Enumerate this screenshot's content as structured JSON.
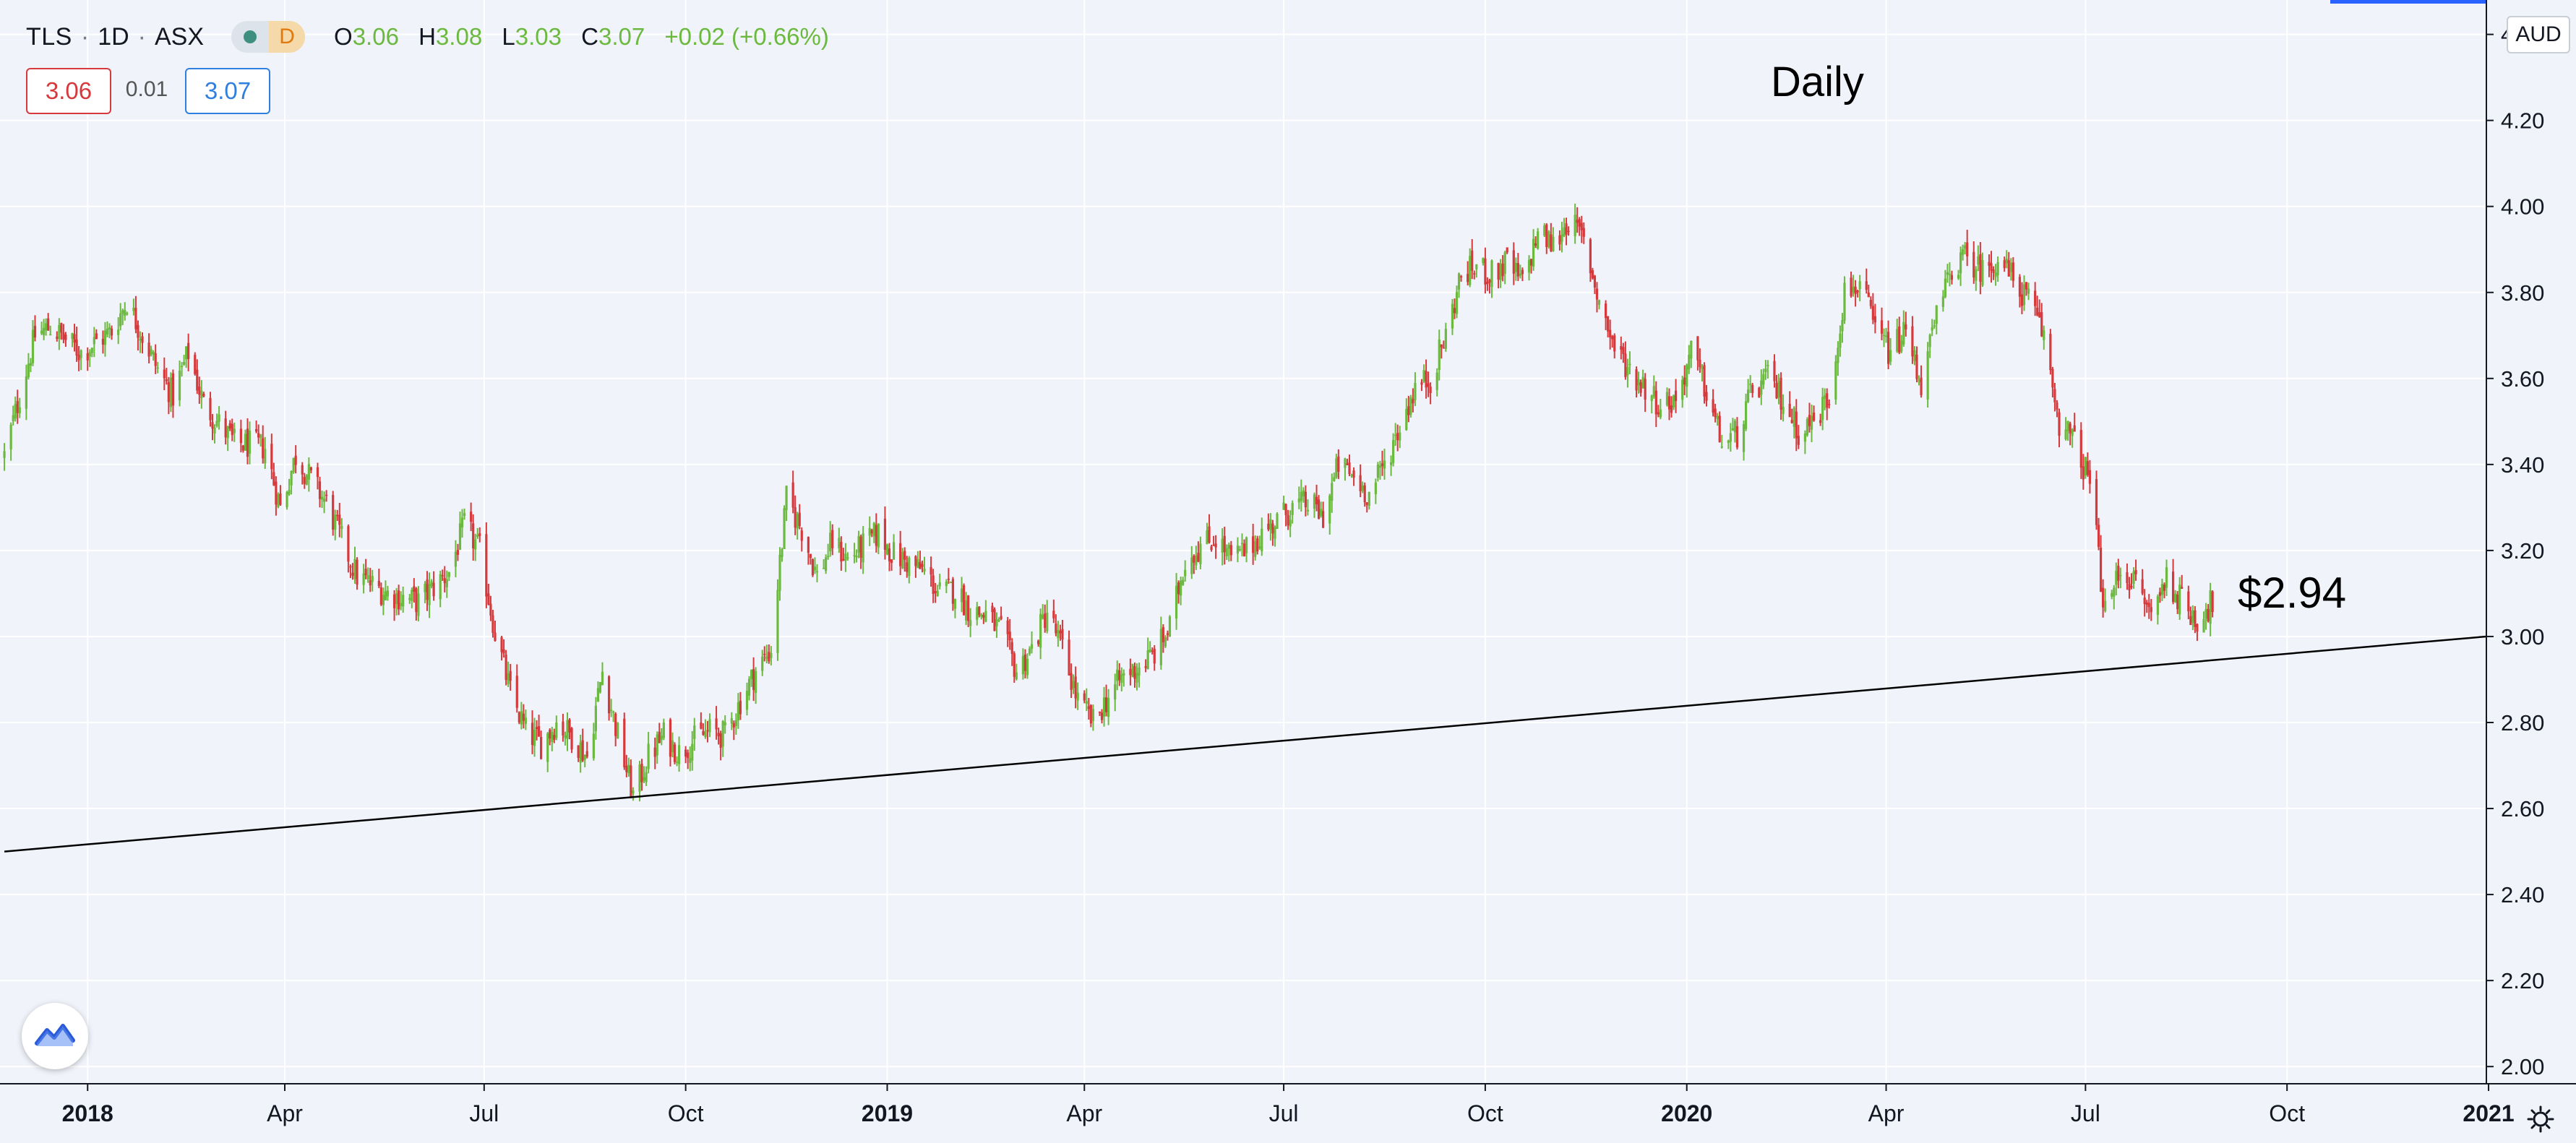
{
  "header": {
    "symbol": "TLS",
    "interval": "1D",
    "exchange": "ASX",
    "separator": "·",
    "delay_badge": "D",
    "ohlc": {
      "o_label": "O",
      "o": "3.06",
      "h_label": "H",
      "h": "3.08",
      "l_label": "L",
      "l": "3.03",
      "c_label": "C",
      "c": "3.07",
      "change": "+0.02 (+0.66%)"
    },
    "bid": "3.06",
    "spread": "0.01",
    "ask": "3.07"
  },
  "currency": "AUD",
  "annotations": {
    "title_text": "Daily",
    "price_note": "$2.94"
  },
  "icons": {
    "logo": "tradingview-logo-icon",
    "settings": "gear-icon",
    "market_status": "market-status-dot-icon"
  },
  "colors": {
    "up": "#6bb93f",
    "down": "#d6393b",
    "background": "#f0f3fa",
    "grid": "#ffffff",
    "trendline": "#000000"
  },
  "chart_data": {
    "type": "candlestick",
    "title": "Daily",
    "ylim": [
      1.96,
      4.48
    ],
    "yticks": [
      2.0,
      2.2,
      2.4,
      2.6,
      2.8,
      3.0,
      3.2,
      3.4,
      3.6,
      3.8,
      4.0,
      4.2,
      4.4
    ],
    "ytick_labels": [
      "2.00",
      "2.20",
      "2.40",
      "2.60",
      "2.80",
      "3.00",
      "3.20",
      "3.40",
      "3.60",
      "3.80",
      "4.00",
      "4.20",
      "4.40"
    ],
    "xlim": [
      "2017-11-22",
      "2020-12-31"
    ],
    "xticks": [
      {
        "date": "2018-01-01",
        "label": "2018",
        "bold": true
      },
      {
        "date": "2018-04-01",
        "label": "Apr",
        "bold": false
      },
      {
        "date": "2018-07-01",
        "label": "Jul",
        "bold": false
      },
      {
        "date": "2018-10-01",
        "label": "Oct",
        "bold": false
      },
      {
        "date": "2019-01-01",
        "label": "2019",
        "bold": true
      },
      {
        "date": "2019-04-01",
        "label": "Apr",
        "bold": false
      },
      {
        "date": "2019-07-01",
        "label": "Jul",
        "bold": false
      },
      {
        "date": "2019-10-01",
        "label": "Oct",
        "bold": false
      },
      {
        "date": "2020-01-01",
        "label": "2020",
        "bold": true
      },
      {
        "date": "2020-04-01",
        "label": "Apr",
        "bold": false
      },
      {
        "date": "2020-07-01",
        "label": "Jul",
        "bold": false
      },
      {
        "date": "2020-10-01",
        "label": "Oct",
        "bold": false
      },
      {
        "date": "2021-01-01",
        "label": "2021",
        "bold": true
      }
    ],
    "close_path": [
      [
        "2017-11-24",
        3.42
      ],
      [
        "2017-12-01",
        3.56
      ],
      [
        "2017-12-08",
        3.7
      ],
      [
        "2017-12-15",
        3.72
      ],
      [
        "2017-12-29",
        3.66
      ],
      [
        "2018-01-12",
        3.71
      ],
      [
        "2018-01-19",
        3.78
      ],
      [
        "2018-02-02",
        3.62
      ],
      [
        "2018-02-09",
        3.56
      ],
      [
        "2018-02-16",
        3.66
      ],
      [
        "2018-02-23",
        3.54
      ],
      [
        "2018-03-09",
        3.45
      ],
      [
        "2018-03-23",
        3.44
      ],
      [
        "2018-03-30",
        3.3
      ],
      [
        "2018-04-06",
        3.42
      ],
      [
        "2018-04-20",
        3.31
      ],
      [
        "2018-05-04",
        3.14
      ],
      [
        "2018-05-18",
        3.1
      ],
      [
        "2018-06-01",
        3.08
      ],
      [
        "2018-06-15",
        3.15
      ],
      [
        "2018-06-22",
        3.26
      ],
      [
        "2018-06-29",
        3.2
      ],
      [
        "2018-07-06",
        3.01
      ],
      [
        "2018-07-13",
        2.87
      ],
      [
        "2018-07-20",
        2.78
      ],
      [
        "2018-07-27",
        2.75
      ],
      [
        "2018-08-03",
        2.8
      ],
      [
        "2018-08-10",
        2.77
      ],
      [
        "2018-08-17",
        2.72
      ],
      [
        "2018-08-24",
        2.92
      ],
      [
        "2018-08-31",
        2.77
      ],
      [
        "2018-09-07",
        2.63
      ],
      [
        "2018-09-14",
        2.72
      ],
      [
        "2018-09-21",
        2.77
      ],
      [
        "2018-09-28",
        2.73
      ],
      [
        "2018-10-05",
        2.76
      ],
      [
        "2018-10-12",
        2.78
      ],
      [
        "2018-10-19",
        2.77
      ],
      [
        "2018-10-26",
        2.85
      ],
      [
        "2018-11-02",
        2.92
      ],
      [
        "2018-11-09",
        2.97
      ],
      [
        "2018-11-16",
        3.32
      ],
      [
        "2018-11-23",
        3.25
      ],
      [
        "2018-11-30",
        3.14
      ],
      [
        "2018-12-07",
        3.22
      ],
      [
        "2018-12-14",
        3.18
      ],
      [
        "2018-12-21",
        3.21
      ],
      [
        "2018-12-28",
        3.24
      ],
      [
        "2019-01-04",
        3.19
      ],
      [
        "2019-01-11",
        3.17
      ],
      [
        "2019-01-18",
        3.15
      ],
      [
        "2019-01-25",
        3.1
      ],
      [
        "2019-02-01",
        3.11
      ],
      [
        "2019-02-08",
        3.06
      ],
      [
        "2019-02-15",
        3.05
      ],
      [
        "2019-02-22",
        3.01
      ],
      [
        "2019-03-01",
        2.92
      ],
      [
        "2019-03-08",
        2.97
      ],
      [
        "2019-03-15",
        3.06
      ],
      [
        "2019-03-22",
        2.97
      ],
      [
        "2019-03-29",
        2.85
      ],
      [
        "2019-04-05",
        2.8
      ],
      [
        "2019-04-12",
        2.86
      ],
      [
        "2019-04-19",
        2.91
      ],
      [
        "2019-04-26",
        2.93
      ],
      [
        "2019-05-03",
        2.96
      ],
      [
        "2019-05-10",
        3.02
      ],
      [
        "2019-05-17",
        3.18
      ],
      [
        "2019-05-24",
        3.21
      ],
      [
        "2019-05-31",
        3.23
      ],
      [
        "2019-06-07",
        3.18
      ],
      [
        "2019-06-14",
        3.2
      ],
      [
        "2019-06-21",
        3.24
      ],
      [
        "2019-06-28",
        3.27
      ],
      [
        "2019-07-05",
        3.3
      ],
      [
        "2019-07-12",
        3.31
      ],
      [
        "2019-07-19",
        3.28
      ],
      [
        "2019-07-26",
        3.4
      ],
      [
        "2019-08-02",
        3.37
      ],
      [
        "2019-08-09",
        3.33
      ],
      [
        "2019-08-16",
        3.4
      ],
      [
        "2019-08-23",
        3.49
      ],
      [
        "2019-08-30",
        3.58
      ],
      [
        "2019-09-06",
        3.6
      ],
      [
        "2019-09-13",
        3.7
      ],
      [
        "2019-09-20",
        3.84
      ],
      [
        "2019-09-27",
        3.86
      ],
      [
        "2019-10-04",
        3.84
      ],
      [
        "2019-10-11",
        3.87
      ],
      [
        "2019-10-18",
        3.82
      ],
      [
        "2019-10-25",
        3.94
      ],
      [
        "2019-11-01",
        3.91
      ],
      [
        "2019-11-08",
        3.97
      ],
      [
        "2019-11-15",
        3.92
      ],
      [
        "2019-11-22",
        3.78
      ],
      [
        "2019-11-29",
        3.67
      ],
      [
        "2019-12-06",
        3.62
      ],
      [
        "2019-12-13",
        3.58
      ],
      [
        "2019-12-20",
        3.54
      ],
      [
        "2019-12-27",
        3.55
      ],
      [
        "2020-01-03",
        3.66
      ],
      [
        "2020-01-10",
        3.57
      ],
      [
        "2020-01-17",
        3.45
      ],
      [
        "2020-01-24",
        3.47
      ],
      [
        "2020-01-31",
        3.57
      ],
      [
        "2020-02-07",
        3.6
      ],
      [
        "2020-02-14",
        3.55
      ],
      [
        "2020-02-21",
        3.48
      ],
      [
        "2020-02-28",
        3.5
      ],
      [
        "2020-03-06",
        3.56
      ],
      [
        "2020-03-13",
        3.8
      ],
      [
        "2020-03-20",
        3.82
      ],
      [
        "2020-03-27",
        3.71
      ],
      [
        "2020-04-03",
        3.66
      ],
      [
        "2020-04-10",
        3.71
      ],
      [
        "2020-04-17",
        3.59
      ],
      [
        "2020-04-24",
        3.74
      ],
      [
        "2020-05-01",
        3.86
      ],
      [
        "2020-05-08",
        3.88
      ],
      [
        "2020-05-15",
        3.85
      ],
      [
        "2020-05-22",
        3.88
      ],
      [
        "2020-05-29",
        3.83
      ],
      [
        "2020-06-05",
        3.78
      ],
      [
        "2020-06-12",
        3.7
      ],
      [
        "2020-06-19",
        3.5
      ],
      [
        "2020-06-26",
        3.45
      ],
      [
        "2020-07-03",
        3.36
      ],
      [
        "2020-07-10",
        3.05
      ],
      [
        "2020-07-17",
        3.16
      ],
      [
        "2020-07-24",
        3.12
      ],
      [
        "2020-07-31",
        3.05
      ],
      [
        "2020-08-07",
        3.14
      ],
      [
        "2020-08-14",
        3.08
      ],
      [
        "2020-08-21",
        3.04
      ],
      [
        "2020-08-28",
        3.08
      ]
    ],
    "trendline": {
      "start": {
        "date": "2017-11-24",
        "value": 2.5
      },
      "end": {
        "date": "2020-12-31",
        "value": 3.0
      }
    },
    "grid": true,
    "legend": "none"
  }
}
